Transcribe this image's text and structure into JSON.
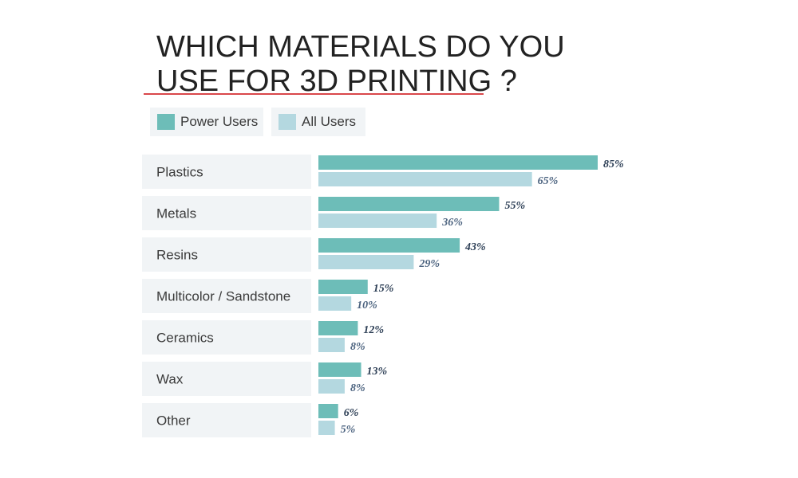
{
  "title_lines": [
    "WHICH MATERIALS DO YOU",
    "USE FOR 3D PRINTING ?"
  ],
  "colors": {
    "power_users": "#6dbdb8",
    "all_users": "#b4d8e0",
    "row_background": "#f1f4f6",
    "title_underline": "#d9474b",
    "power_label": "#2c3e55",
    "all_label": "#4d6480"
  },
  "legend": [
    {
      "label": "Power Users",
      "series": "power"
    },
    {
      "label": "All Users",
      "series": "all"
    }
  ],
  "chart_data": {
    "type": "bar",
    "orientation": "horizontal",
    "title": "WHICH MATERIALS DO YOU USE FOR 3D PRINTING ?",
    "categories": [
      "Plastics",
      "Metals",
      "Resins",
      "Multicolor / Sandstone",
      "Ceramics",
      "Wax",
      "Other"
    ],
    "series": [
      {
        "name": "Power Users",
        "values": [
          85,
          55,
          43,
          15,
          12,
          13,
          6
        ],
        "labels": [
          "85%",
          "55%",
          "43%",
          "15%",
          "12%",
          "13%",
          "6%"
        ]
      },
      {
        "name": "All Users",
        "values": [
          65,
          36,
          29,
          10,
          8,
          8,
          5
        ],
        "labels": [
          "65%",
          "36%",
          "29%",
          "10%",
          "8%",
          "8%",
          "5%"
        ]
      }
    ],
    "unit": "%",
    "xlim": [
      0,
      100
    ],
    "xlabel": "",
    "ylabel": "",
    "grid": false,
    "legend_position": "top-left"
  }
}
